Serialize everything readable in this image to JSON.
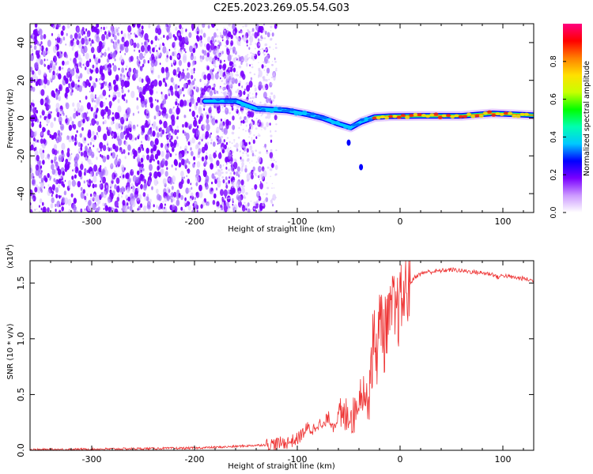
{
  "title": "C2E5.2023.269.05.54.G03",
  "chart_data": [
    {
      "type": "heatmap",
      "xlabel": "Height of straight line (km)",
      "ylabel": "Frequency (Hz)",
      "xlim": [
        -360,
        130
      ],
      "ylim": [
        -50,
        50
      ],
      "x_ticks": [
        -300,
        -200,
        -100,
        0,
        100
      ],
      "y_ticks": [
        -40,
        -20,
        0,
        20,
        40
      ],
      "ridge": [
        {
          "x": -190,
          "y": 9
        },
        {
          "x": -160,
          "y": 9
        },
        {
          "x": -140,
          "y": 5
        },
        {
          "x": -110,
          "y": 4
        },
        {
          "x": -90,
          "y": 2
        },
        {
          "x": -75,
          "y": 0
        },
        {
          "x": -60,
          "y": -3
        },
        {
          "x": -48,
          "y": -5
        },
        {
          "x": -38,
          "y": -2
        },
        {
          "x": -25,
          "y": 0.5
        },
        {
          "x": -10,
          "y": 1
        },
        {
          "x": 20,
          "y": 1.2
        },
        {
          "x": 60,
          "y": 1.2
        },
        {
          "x": 90,
          "y": 2.5
        },
        {
          "x": 130,
          "y": 1.5
        }
      ],
      "colorbar": {
        "label": "Normalized spectral amplitude",
        "range": [
          0,
          1
        ],
        "ticks": [
          "0.0",
          "0.2",
          "0.4",
          "0.6",
          "0.8"
        ],
        "colors": [
          "#ffffff",
          "#cc99ff",
          "#7a00ff",
          "#0000ff",
          "#00c8ff",
          "#00ffb0",
          "#00ff00",
          "#c8ff00",
          "#ffe000",
          "#ff8000",
          "#ff0000",
          "#ff0080"
        ]
      }
    },
    {
      "type": "line",
      "xlabel": "Height of straight line (km)",
      "ylabel": "SNR (10 * v/v)",
      "y_multiplier_label": "(x10",
      "y_multiplier_exp": "4",
      "y_multiplier_close": ")",
      "xlim": [
        -360,
        130
      ],
      "ylim": [
        0,
        1.7
      ],
      "x_ticks": [
        -300,
        -200,
        -100,
        0,
        100
      ],
      "y_ticks": [
        "0.0",
        "0.5",
        "1.0",
        "1.5"
      ],
      "y_tick_values": [
        0,
        0.5,
        1.0,
        1.5
      ],
      "color": "#ee3333",
      "series": [
        {
          "x": [
            -360,
            -300,
            -250,
            -200,
            -170,
            -150,
            -130,
            -120,
            -110,
            -100,
            -95,
            -90,
            -85,
            -80,
            -75,
            -70,
            -65,
            -60,
            -55,
            -50,
            -45,
            -40,
            -35,
            -32,
            -30,
            -28,
            -25,
            -22,
            -20,
            -18,
            -15,
            -12,
            -10,
            -8,
            -5,
            -2,
            0,
            5,
            10,
            15,
            20,
            25,
            30,
            40,
            50,
            60,
            70,
            80,
            90,
            95,
            100,
            110,
            120,
            130
          ],
          "y": [
            0.005,
            0.01,
            0.015,
            0.02,
            0.03,
            0.04,
            0.05,
            0.06,
            0.07,
            0.1,
            0.15,
            0.2,
            0.18,
            0.25,
            0.2,
            0.3,
            0.22,
            0.3,
            0.28,
            0.35,
            0.3,
            0.5,
            0.55,
            0.4,
            0.6,
            0.8,
            1.0,
            0.9,
            1.1,
            1.2,
            1.0,
            1.25,
            1.1,
            1.3,
            1.2,
            1.25,
            1.3,
            1.42,
            1.5,
            1.56,
            1.58,
            1.6,
            1.6,
            1.61,
            1.62,
            1.61,
            1.6,
            1.59,
            1.58,
            1.55,
            1.57,
            1.55,
            1.54,
            1.52
          ]
        }
      ]
    }
  ]
}
